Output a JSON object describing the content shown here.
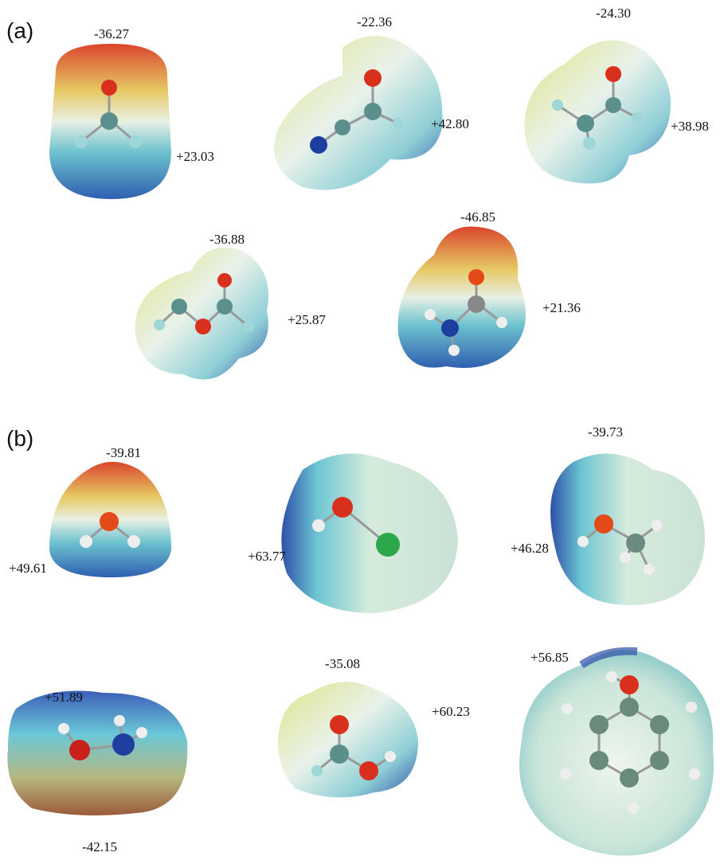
{
  "panels": [
    {
      "label": "(a)",
      "molecules": [
        {
          "potentials": [
            "-36.27",
            "+23.03"
          ]
        },
        {
          "potentials": [
            "-22.36",
            "+42.80"
          ]
        },
        {
          "potentials": [
            "-24.30",
            "+38.98"
          ]
        },
        {
          "potentials": [
            "-36.88",
            "+25.87"
          ]
        },
        {
          "potentials": [
            "-46.85",
            "+21.36"
          ]
        }
      ]
    },
    {
      "label": "(b)",
      "molecules": [
        {
          "potentials": [
            "-39.81",
            "+49.61"
          ]
        },
        {
          "potentials": [
            "+63.77"
          ]
        },
        {
          "potentials": [
            "-39.73",
            "+46.28"
          ]
        },
        {
          "potentials": [
            "+51.89",
            "-42.15"
          ]
        },
        {
          "potentials": [
            "-35.08",
            "+60.23"
          ]
        },
        {
          "potentials": [
            "+56.85"
          ]
        }
      ]
    }
  ]
}
